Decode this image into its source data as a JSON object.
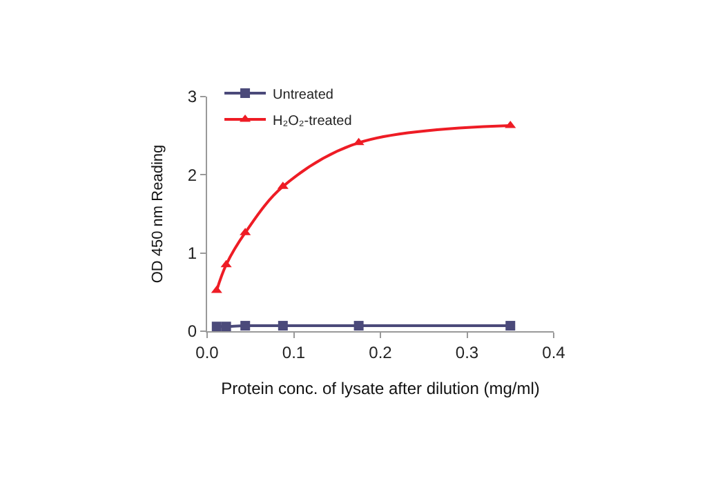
{
  "chart_data": {
    "type": "line",
    "xlabel": "Protein conc. of lysate after dilution (mg/ml)",
    "ylabel": "OD 450 nm Reading",
    "x": [
      0.011,
      0.022,
      0.044,
      0.0875,
      0.175,
      0.35
    ],
    "series": [
      {
        "name": "Untreated",
        "color": "#4b4a7a",
        "marker": "square",
        "values": [
          0.06,
          0.06,
          0.07,
          0.07,
          0.07,
          0.07
        ]
      },
      {
        "name": "H₂O₂-treated",
        "color": "#ee1c25",
        "marker": "triangle",
        "values": [
          0.52,
          0.85,
          1.26,
          1.85,
          2.41,
          2.63
        ]
      }
    ],
    "xlim": [
      0,
      0.4
    ],
    "xticks": [
      {
        "value": 0,
        "label": "0.0"
      },
      0.1,
      0.2,
      0.3,
      0.4
    ],
    "ylim": [
      0,
      3
    ],
    "yticks": [
      0,
      1,
      2,
      3
    ],
    "legend": "top left"
  }
}
